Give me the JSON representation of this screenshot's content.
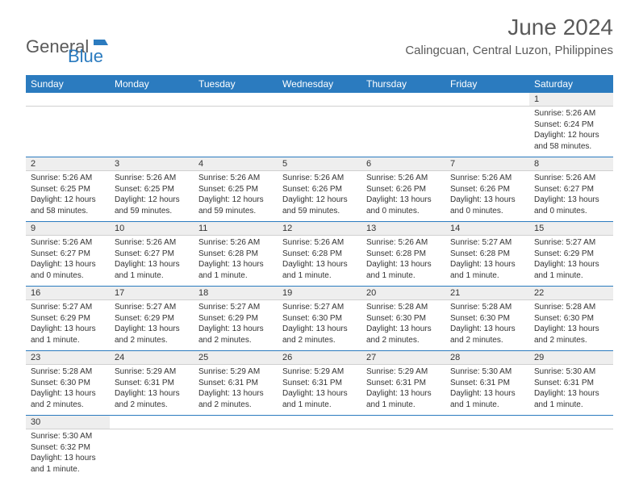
{
  "logo": {
    "text1": "General",
    "text2": "Blue"
  },
  "title": "June 2024",
  "location": "Calingcuan, Central Luzon, Philippines",
  "colors": {
    "header_bg": "#2b7bbf",
    "header_text": "#ffffff",
    "day_number_bg": "#eeeeee",
    "text_color": "#333333",
    "logo_gray": "#5a5a5a",
    "logo_blue": "#2b7bbf",
    "separator": "#2b7bbf"
  },
  "weekdays": [
    "Sunday",
    "Monday",
    "Tuesday",
    "Wednesday",
    "Thursday",
    "Friday",
    "Saturday"
  ],
  "weeks": [
    {
      "numbers": [
        "",
        "",
        "",
        "",
        "",
        "",
        "1"
      ],
      "days": [
        null,
        null,
        null,
        null,
        null,
        null,
        {
          "sunrise": "Sunrise: 5:26 AM",
          "sunset": "Sunset: 6:24 PM",
          "daylight": "Daylight: 12 hours and 58 minutes."
        }
      ]
    },
    {
      "numbers": [
        "2",
        "3",
        "4",
        "5",
        "6",
        "7",
        "8"
      ],
      "days": [
        {
          "sunrise": "Sunrise: 5:26 AM",
          "sunset": "Sunset: 6:25 PM",
          "daylight": "Daylight: 12 hours and 58 minutes."
        },
        {
          "sunrise": "Sunrise: 5:26 AM",
          "sunset": "Sunset: 6:25 PM",
          "daylight": "Daylight: 12 hours and 59 minutes."
        },
        {
          "sunrise": "Sunrise: 5:26 AM",
          "sunset": "Sunset: 6:25 PM",
          "daylight": "Daylight: 12 hours and 59 minutes."
        },
        {
          "sunrise": "Sunrise: 5:26 AM",
          "sunset": "Sunset: 6:26 PM",
          "daylight": "Daylight: 12 hours and 59 minutes."
        },
        {
          "sunrise": "Sunrise: 5:26 AM",
          "sunset": "Sunset: 6:26 PM",
          "daylight": "Daylight: 13 hours and 0 minutes."
        },
        {
          "sunrise": "Sunrise: 5:26 AM",
          "sunset": "Sunset: 6:26 PM",
          "daylight": "Daylight: 13 hours and 0 minutes."
        },
        {
          "sunrise": "Sunrise: 5:26 AM",
          "sunset": "Sunset: 6:27 PM",
          "daylight": "Daylight: 13 hours and 0 minutes."
        }
      ]
    },
    {
      "numbers": [
        "9",
        "10",
        "11",
        "12",
        "13",
        "14",
        "15"
      ],
      "days": [
        {
          "sunrise": "Sunrise: 5:26 AM",
          "sunset": "Sunset: 6:27 PM",
          "daylight": "Daylight: 13 hours and 0 minutes."
        },
        {
          "sunrise": "Sunrise: 5:26 AM",
          "sunset": "Sunset: 6:27 PM",
          "daylight": "Daylight: 13 hours and 1 minute."
        },
        {
          "sunrise": "Sunrise: 5:26 AM",
          "sunset": "Sunset: 6:28 PM",
          "daylight": "Daylight: 13 hours and 1 minute."
        },
        {
          "sunrise": "Sunrise: 5:26 AM",
          "sunset": "Sunset: 6:28 PM",
          "daylight": "Daylight: 13 hours and 1 minute."
        },
        {
          "sunrise": "Sunrise: 5:26 AM",
          "sunset": "Sunset: 6:28 PM",
          "daylight": "Daylight: 13 hours and 1 minute."
        },
        {
          "sunrise": "Sunrise: 5:27 AM",
          "sunset": "Sunset: 6:28 PM",
          "daylight": "Daylight: 13 hours and 1 minute."
        },
        {
          "sunrise": "Sunrise: 5:27 AM",
          "sunset": "Sunset: 6:29 PM",
          "daylight": "Daylight: 13 hours and 1 minute."
        }
      ]
    },
    {
      "numbers": [
        "16",
        "17",
        "18",
        "19",
        "20",
        "21",
        "22"
      ],
      "days": [
        {
          "sunrise": "Sunrise: 5:27 AM",
          "sunset": "Sunset: 6:29 PM",
          "daylight": "Daylight: 13 hours and 1 minute."
        },
        {
          "sunrise": "Sunrise: 5:27 AM",
          "sunset": "Sunset: 6:29 PM",
          "daylight": "Daylight: 13 hours and 2 minutes."
        },
        {
          "sunrise": "Sunrise: 5:27 AM",
          "sunset": "Sunset: 6:29 PM",
          "daylight": "Daylight: 13 hours and 2 minutes."
        },
        {
          "sunrise": "Sunrise: 5:27 AM",
          "sunset": "Sunset: 6:30 PM",
          "daylight": "Daylight: 13 hours and 2 minutes."
        },
        {
          "sunrise": "Sunrise: 5:28 AM",
          "sunset": "Sunset: 6:30 PM",
          "daylight": "Daylight: 13 hours and 2 minutes."
        },
        {
          "sunrise": "Sunrise: 5:28 AM",
          "sunset": "Sunset: 6:30 PM",
          "daylight": "Daylight: 13 hours and 2 minutes."
        },
        {
          "sunrise": "Sunrise: 5:28 AM",
          "sunset": "Sunset: 6:30 PM",
          "daylight": "Daylight: 13 hours and 2 minutes."
        }
      ]
    },
    {
      "numbers": [
        "23",
        "24",
        "25",
        "26",
        "27",
        "28",
        "29"
      ],
      "days": [
        {
          "sunrise": "Sunrise: 5:28 AM",
          "sunset": "Sunset: 6:30 PM",
          "daylight": "Daylight: 13 hours and 2 minutes."
        },
        {
          "sunrise": "Sunrise: 5:29 AM",
          "sunset": "Sunset: 6:31 PM",
          "daylight": "Daylight: 13 hours and 2 minutes."
        },
        {
          "sunrise": "Sunrise: 5:29 AM",
          "sunset": "Sunset: 6:31 PM",
          "daylight": "Daylight: 13 hours and 2 minutes."
        },
        {
          "sunrise": "Sunrise: 5:29 AM",
          "sunset": "Sunset: 6:31 PM",
          "daylight": "Daylight: 13 hours and 1 minute."
        },
        {
          "sunrise": "Sunrise: 5:29 AM",
          "sunset": "Sunset: 6:31 PM",
          "daylight": "Daylight: 13 hours and 1 minute."
        },
        {
          "sunrise": "Sunrise: 5:30 AM",
          "sunset": "Sunset: 6:31 PM",
          "daylight": "Daylight: 13 hours and 1 minute."
        },
        {
          "sunrise": "Sunrise: 5:30 AM",
          "sunset": "Sunset: 6:31 PM",
          "daylight": "Daylight: 13 hours and 1 minute."
        }
      ]
    },
    {
      "numbers": [
        "30",
        "",
        "",
        "",
        "",
        "",
        ""
      ],
      "days": [
        {
          "sunrise": "Sunrise: 5:30 AM",
          "sunset": "Sunset: 6:32 PM",
          "daylight": "Daylight: 13 hours and 1 minute."
        },
        null,
        null,
        null,
        null,
        null,
        null
      ]
    }
  ]
}
